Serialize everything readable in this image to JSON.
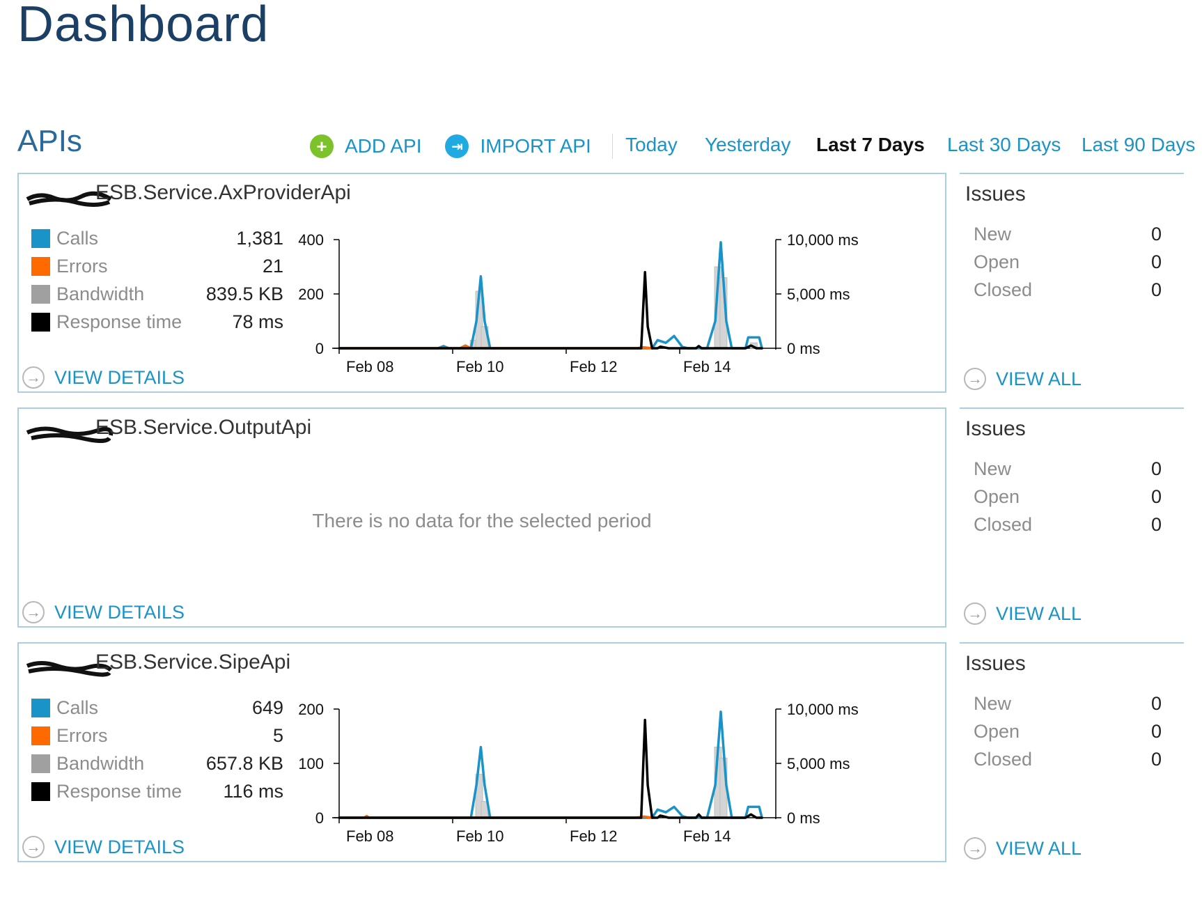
{
  "page_title": "Dashboard",
  "section_title": "APIs",
  "toolbar": {
    "add_api": "ADD API",
    "import_api": "IMPORT API",
    "periods": [
      "Today",
      "Yesterday",
      "Last 7 Days",
      "Last 30 Days",
      "Last 90 Days"
    ],
    "active_period": "Last 7 Days"
  },
  "colors": {
    "calls": "#1a93c8",
    "errors": "#ff6a00",
    "bandwidth": "#a0a0a0",
    "response_time": "#000000",
    "add_icon": "#7cc22a",
    "import_icon": "#21a9e1"
  },
  "legend_labels": [
    "Calls",
    "Errors",
    "Bandwidth",
    "Response time"
  ],
  "view_details_label": "VIEW DETAILS",
  "view_all_label": "VIEW ALL",
  "no_data_message": "There is no data for the selected period",
  "apis": [
    {
      "name": "ESB.Service.AxProviderApi",
      "stats": {
        "calls": "1,381",
        "errors": "21",
        "bandwidth": "839.5 KB",
        "response_time": "78 ms"
      },
      "has_data": true,
      "issues": {
        "title": "Issues",
        "new_label": "New",
        "new": "0",
        "open_label": "Open",
        "open": "0",
        "closed_label": "Closed",
        "closed": "0"
      }
    },
    {
      "name": "ESB.Service.OutputApi",
      "has_data": false,
      "issues": {
        "title": "Issues",
        "new_label": "New",
        "new": "0",
        "open_label": "Open",
        "open": "0",
        "closed_label": "Closed",
        "closed": "0"
      }
    },
    {
      "name": "ESB.Service.SipeApi",
      "stats": {
        "calls": "649",
        "errors": "5",
        "bandwidth": "657.8 KB",
        "response_time": "116 ms"
      },
      "has_data": true,
      "issues": {
        "title": "Issues",
        "new_label": "New",
        "new": "0",
        "open_label": "Open",
        "open": "0",
        "closed_label": "Closed",
        "closed": "0"
      }
    }
  ],
  "chart_data": [
    {
      "type": "line",
      "x_ticks": [
        "Feb 08",
        "Feb 10",
        "Feb 12",
        "Feb 14"
      ],
      "x_range_days": [
        7.5,
        15.3
      ],
      "y_left_ticks": [
        "0",
        "200",
        "400"
      ],
      "y_left_range": [
        0,
        400
      ],
      "y_right_ticks": [
        "0 ms",
        "5,000 ms",
        "10,000 ms"
      ],
      "y_right_range_ms": [
        0,
        10000
      ],
      "series": [
        {
          "name": "Calls",
          "axis": "left",
          "points": [
            [
              7.5,
              0
            ],
            [
              9.3,
              0
            ],
            [
              9.4,
              8
            ],
            [
              9.5,
              0
            ],
            [
              9.9,
              0
            ],
            [
              10.0,
              100
            ],
            [
              10.08,
              265
            ],
            [
              10.15,
              100
            ],
            [
              10.25,
              0
            ],
            [
              12.9,
              0
            ],
            [
              13.2,
              0
            ],
            [
              13.3,
              30
            ],
            [
              13.45,
              20
            ],
            [
              13.6,
              45
            ],
            [
              13.75,
              5
            ],
            [
              13.85,
              0
            ],
            [
              14.2,
              0
            ],
            [
              14.35,
              100
            ],
            [
              14.45,
              390
            ],
            [
              14.55,
              100
            ],
            [
              14.65,
              0
            ],
            [
              14.9,
              0
            ],
            [
              14.95,
              40
            ],
            [
              15.15,
              40
            ],
            [
              15.2,
              0
            ]
          ]
        },
        {
          "name": "Errors",
          "axis": "left",
          "points": [
            [
              7.5,
              0
            ],
            [
              9.7,
              0
            ],
            [
              9.8,
              10
            ],
            [
              9.9,
              0
            ],
            [
              12.9,
              0
            ],
            [
              13.05,
              3
            ],
            [
              13.2,
              0
            ]
          ]
        },
        {
          "name": "Bandwidth",
          "axis": "left",
          "bars": [
            [
              9.95,
              30
            ],
            [
              10.05,
              210
            ],
            [
              10.15,
              80
            ],
            [
              14.4,
              300
            ],
            [
              14.5,
              260
            ],
            [
              15.05,
              20
            ]
          ]
        },
        {
          "name": "Response time",
          "axis": "right",
          "points": [
            [
              7.5,
              0
            ],
            [
              12.9,
              0
            ],
            [
              13.0,
              0
            ],
            [
              13.07,
              7000
            ],
            [
              13.12,
              2000
            ],
            [
              13.2,
              0
            ],
            [
              13.3,
              0
            ],
            [
              13.35,
              150
            ],
            [
              13.5,
              0
            ],
            [
              14.0,
              0
            ],
            [
              14.05,
              200
            ],
            [
              14.1,
              0
            ],
            [
              14.9,
              0
            ],
            [
              15.0,
              250
            ],
            [
              15.1,
              0
            ],
            [
              15.2,
              0
            ]
          ]
        }
      ]
    },
    {
      "type": "line",
      "x_ticks": [
        "Feb 08",
        "Feb 10",
        "Feb 12",
        "Feb 14"
      ],
      "x_range_days": [
        7.5,
        15.3
      ],
      "y_left_ticks": [
        "0",
        "100",
        "200"
      ],
      "y_left_range": [
        0,
        200
      ],
      "y_right_ticks": [
        "0 ms",
        "5,000 ms",
        "10,000 ms"
      ],
      "y_right_range_ms": [
        0,
        10000
      ],
      "series": [
        {
          "name": "Calls",
          "axis": "left",
          "points": [
            [
              7.5,
              0
            ],
            [
              9.9,
              0
            ],
            [
              10.0,
              60
            ],
            [
              10.08,
              130
            ],
            [
              10.15,
              60
            ],
            [
              10.25,
              0
            ],
            [
              12.9,
              0
            ],
            [
              13.2,
              0
            ],
            [
              13.3,
              15
            ],
            [
              13.45,
              10
            ],
            [
              13.6,
              20
            ],
            [
              13.75,
              3
            ],
            [
              13.85,
              0
            ],
            [
              14.2,
              0
            ],
            [
              14.35,
              60
            ],
            [
              14.45,
              195
            ],
            [
              14.55,
              60
            ],
            [
              14.65,
              0
            ],
            [
              14.9,
              0
            ],
            [
              14.95,
              20
            ],
            [
              15.15,
              20
            ],
            [
              15.2,
              0
            ]
          ]
        },
        {
          "name": "Errors",
          "axis": "left",
          "points": [
            [
              7.5,
              0
            ],
            [
              7.95,
              0
            ],
            [
              8.0,
              3
            ],
            [
              8.05,
              0
            ],
            [
              12.9,
              0
            ],
            [
              13.05,
              2
            ],
            [
              13.2,
              0
            ]
          ]
        },
        {
          "name": "Bandwidth",
          "axis": "left",
          "bars": [
            [
              10.05,
              80
            ],
            [
              10.15,
              30
            ],
            [
              14.4,
              130
            ],
            [
              14.5,
              110
            ]
          ]
        },
        {
          "name": "Response time",
          "axis": "right",
          "points": [
            [
              7.5,
              0
            ],
            [
              12.9,
              0
            ],
            [
              13.0,
              0
            ],
            [
              13.07,
              9000
            ],
            [
              13.12,
              3000
            ],
            [
              13.2,
              0
            ],
            [
              13.3,
              0
            ],
            [
              13.35,
              200
            ],
            [
              13.5,
              0
            ],
            [
              14.0,
              0
            ],
            [
              14.05,
              300
            ],
            [
              14.1,
              0
            ],
            [
              14.9,
              0
            ],
            [
              15.0,
              300
            ],
            [
              15.1,
              0
            ],
            [
              15.2,
              0
            ]
          ]
        }
      ]
    }
  ]
}
